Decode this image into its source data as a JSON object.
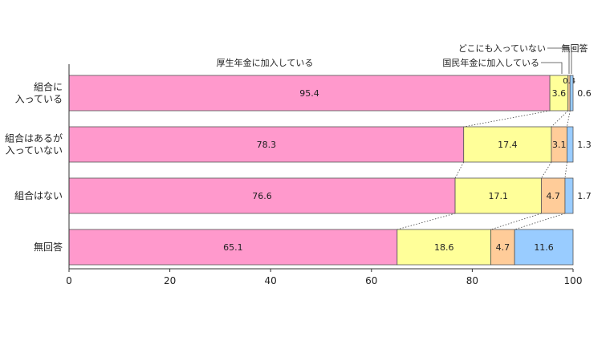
{
  "chart_data": {
    "type": "bar",
    "orientation": "horizontal",
    "stacked": true,
    "categories": [
      "組合に\n入っている",
      "組合はあるが\n入っていない",
      "組合はない",
      "無回答"
    ],
    "series": [
      {
        "name": "厚生年金に加入している",
        "color": "#ff99cc",
        "values": [
          95.4,
          78.3,
          76.6,
          65.1
        ]
      },
      {
        "name": "国民年金に加入している",
        "color": "#ffff99",
        "values": [
          3.6,
          17.4,
          17.1,
          18.6
        ]
      },
      {
        "name": "どこにも入っていない",
        "color": "#ffcc99",
        "values": [
          0.4,
          3.1,
          4.7,
          4.7
        ]
      },
      {
        "name": "無回答",
        "color": "#99ccff",
        "values": [
          0.6,
          1.3,
          1.7,
          11.6
        ]
      }
    ],
    "data_labels": [
      [
        "95.4",
        "3.6",
        "0.4",
        "0.6"
      ],
      [
        "78.3",
        "17.4",
        "3.1",
        "1.3"
      ],
      [
        "76.6",
        "17.1",
        "4.7",
        "1.7"
      ],
      [
        "65.1",
        "18.6",
        "4.7",
        "11.6"
      ]
    ],
    "xlim": [
      0,
      100
    ],
    "xticks": [
      0,
      20,
      40,
      60,
      80,
      100
    ],
    "grid": false,
    "legend": "annotations-top"
  }
}
